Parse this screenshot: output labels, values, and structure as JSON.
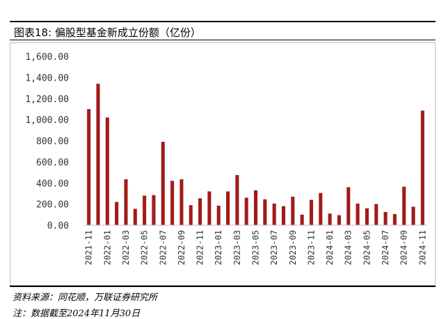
{
  "title": "图表18: 偏股型基金新成立份额（亿份）",
  "source": "资料来源：同花顺，万联证券研究所",
  "note": "注：数据截至2024年11月30日",
  "colors": {
    "bar": "#a11b1b",
    "axis": "#bfbfbf",
    "frame": "#bfbfbf"
  },
  "chart_data": {
    "type": "bar",
    "title": "",
    "xlabel": "",
    "ylabel": "",
    "ylim": [
      0,
      1600
    ],
    "yticks": [
      0,
      200,
      400,
      600,
      800,
      1000,
      1200,
      1400,
      1600
    ],
    "ytick_labels": [
      "0.00",
      "200.00",
      "400.00",
      "600.00",
      "800.00",
      "1,000.00",
      "1,200.00",
      "1,400.00",
      "1,600.00"
    ],
    "grid": false,
    "categories": [
      "2021-11",
      "2021-12",
      "2022-01",
      "2022-02",
      "2022-03",
      "2022-04",
      "2022-05",
      "2022-06",
      "2022-07",
      "2022-08",
      "2022-09",
      "2022-10",
      "2022-11",
      "2022-12",
      "2023-01",
      "2023-02",
      "2023-03",
      "2023-04",
      "2023-05",
      "2023-06",
      "2023-07",
      "2023-08",
      "2023-09",
      "2023-10",
      "2023-11",
      "2023-12",
      "2024-01",
      "2024-02",
      "2024-03",
      "2024-04",
      "2024-05",
      "2024-06",
      "2024-07",
      "2024-08",
      "2024-09",
      "2024-10",
      "2024-11"
    ],
    "xtick_labels": [
      "2021-11",
      "",
      "2022-01",
      "",
      "2022-03",
      "",
      "2022-05",
      "",
      "2022-07",
      "",
      "2022-09",
      "",
      "2022-11",
      "",
      "2023-01",
      "",
      "2023-03",
      "",
      "2023-05",
      "",
      "2023-07",
      "",
      "2023-09",
      "",
      "2023-11",
      "",
      "2024-01",
      "",
      "2024-03",
      "",
      "2024-05",
      "",
      "2024-07",
      "",
      "2024-09",
      "",
      "2024-11"
    ],
    "values": [
      1100,
      1340,
      1020,
      220,
      435,
      155,
      280,
      285,
      790,
      420,
      435,
      190,
      255,
      320,
      185,
      320,
      475,
      260,
      330,
      245,
      205,
      180,
      270,
      100,
      240,
      305,
      110,
      95,
      360,
      205,
      160,
      200,
      125,
      105,
      365,
      175,
      1085
    ]
  }
}
